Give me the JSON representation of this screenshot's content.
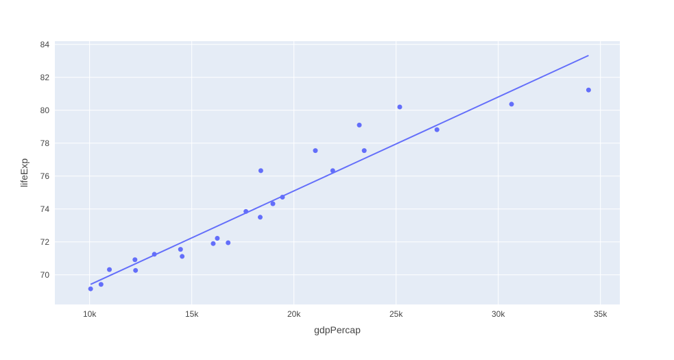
{
  "chart_data": {
    "type": "scatter",
    "xlabel": "gdpPercap",
    "ylabel": "lifeExp",
    "xlim": [
      8300,
      35950
    ],
    "ylim": [
      68.2,
      84.2
    ],
    "xticks": [
      10000,
      15000,
      20000,
      25000,
      30000,
      35000
    ],
    "xtick_labels": [
      "10k",
      "15k",
      "20k",
      "25k",
      "30k",
      "35k"
    ],
    "yticks": [
      70,
      72,
      74,
      76,
      78,
      80,
      82,
      84
    ],
    "ytick_labels": [
      "70",
      "72",
      "74",
      "76",
      "78",
      "80",
      "82",
      "84"
    ],
    "grid": true,
    "colors": {
      "plot_bg": "#e5ecf6",
      "grid": "#ffffff",
      "series": "#636efa",
      "text": "#444444"
    },
    "series": [
      {
        "mode": "markers",
        "points": [
          [
            10050,
            69.15
          ],
          [
            10560,
            69.42
          ],
          [
            10970,
            70.32
          ],
          [
            12220,
            70.92
          ],
          [
            12250,
            70.27
          ],
          [
            13170,
            71.25
          ],
          [
            14450,
            71.55
          ],
          [
            14530,
            71.12
          ],
          [
            16050,
            71.9
          ],
          [
            16250,
            72.22
          ],
          [
            16780,
            71.95
          ],
          [
            17650,
            73.85
          ],
          [
            18350,
            73.5
          ],
          [
            18380,
            76.33
          ],
          [
            18970,
            74.32
          ],
          [
            19440,
            74.72
          ],
          [
            21050,
            77.55
          ],
          [
            21900,
            76.33
          ],
          [
            23200,
            79.1
          ],
          [
            23440,
            77.55
          ],
          [
            25180,
            80.2
          ],
          [
            27000,
            78.82
          ],
          [
            30650,
            80.37
          ],
          [
            34420,
            81.23
          ]
        ]
      },
      {
        "mode": "lines",
        "points": [
          [
            10050,
            69.42
          ],
          [
            34420,
            83.33
          ]
        ]
      }
    ]
  }
}
